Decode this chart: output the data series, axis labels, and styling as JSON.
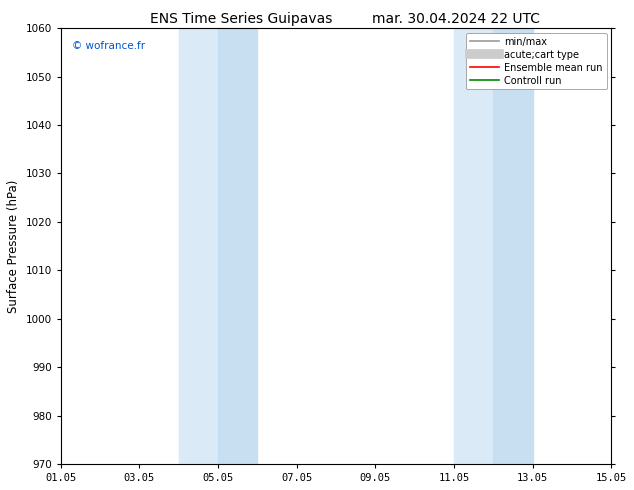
{
  "title_left": "ENS Time Series Guipavas",
  "title_right": "mar. 30.04.2024 22 UTC",
  "ylabel": "Surface Pressure (hPa)",
  "ylim": [
    970,
    1060
  ],
  "yticks": [
    970,
    980,
    990,
    1000,
    1010,
    1020,
    1030,
    1040,
    1050,
    1060
  ],
  "xlim_start": 0,
  "xlim_end": 14,
  "xtick_labels": [
    "01.05",
    "03.05",
    "05.05",
    "07.05",
    "09.05",
    "11.05",
    "13.05",
    "15.05"
  ],
  "xtick_positions": [
    0,
    2,
    4,
    6,
    8,
    10,
    12,
    14
  ],
  "shade_bands": [
    {
      "xmin": 3.0,
      "xmax": 4.0
    },
    {
      "xmin": 4.0,
      "xmax": 5.0
    },
    {
      "xmin": 10.0,
      "xmax": 11.0
    },
    {
      "xmin": 11.0,
      "xmax": 12.0
    }
  ],
  "shade_colors": [
    "#daeaf7",
    "#c8dff2",
    "#daeaf7",
    "#c8dff2"
  ],
  "background_color": "#ffffff",
  "watermark": "© wofrance.fr",
  "watermark_color": "#0055cc",
  "legend_entries": [
    {
      "label": "min/max",
      "color": "#999999",
      "lw": 1.2
    },
    {
      "label": "acute;cart type",
      "color": "#cccccc",
      "lw": 7
    },
    {
      "label": "Ensemble mean run",
      "color": "#ff0000",
      "lw": 1.2
    },
    {
      "label": "Controll run",
      "color": "#008800",
      "lw": 1.2
    }
  ],
  "title_fontsize": 10,
  "axis_label_fontsize": 8.5,
  "tick_fontsize": 7.5,
  "legend_fontsize": 7
}
